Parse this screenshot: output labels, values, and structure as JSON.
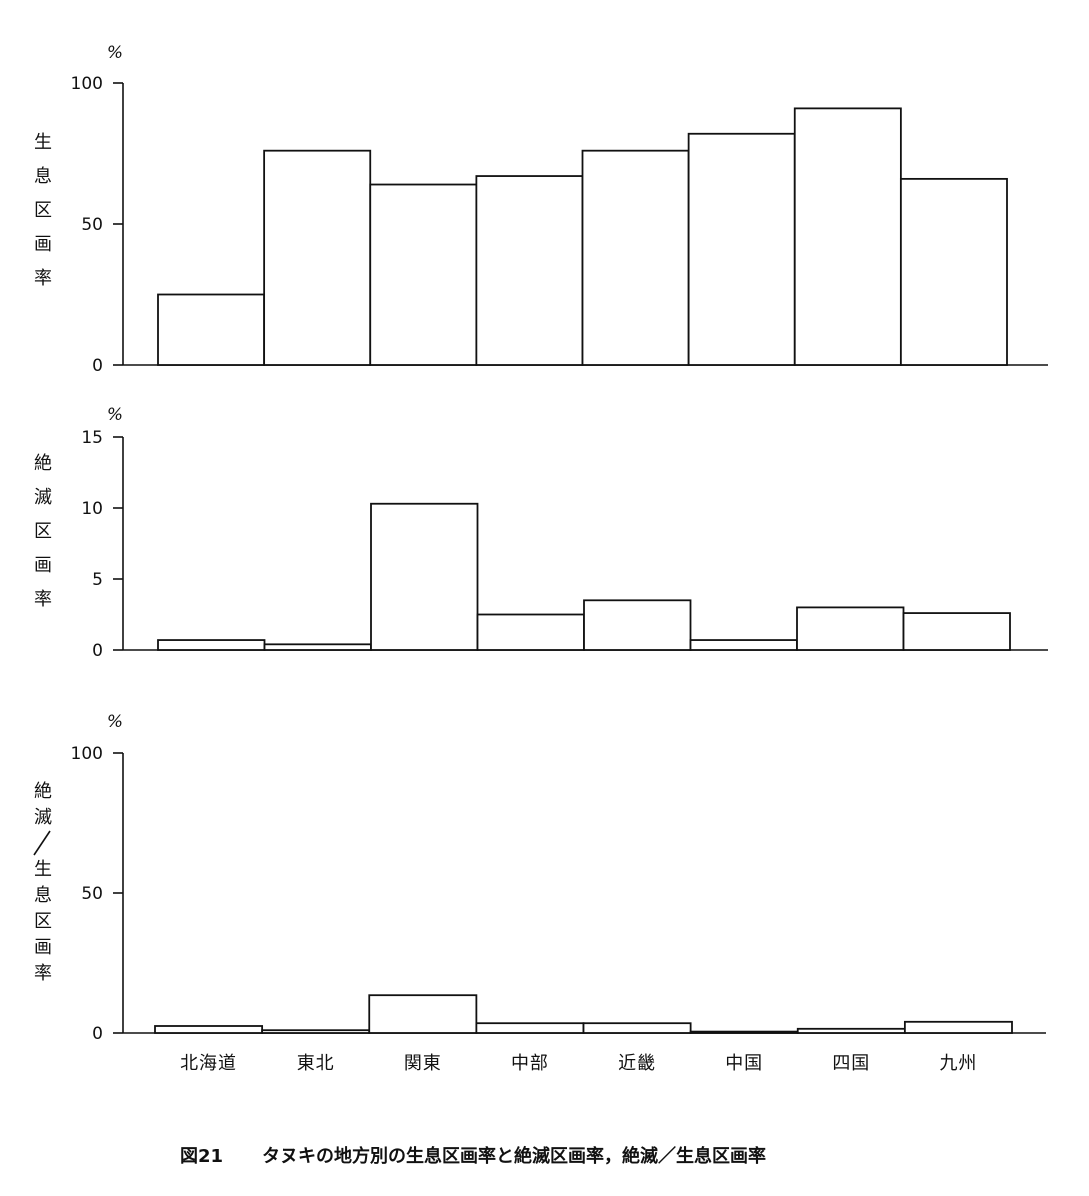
{
  "caption": {
    "label": "図21",
    "text": "タヌキの地方別の生息区画率と絶滅区画率，絶滅／生息区画率"
  },
  "chart_data": [
    {
      "type": "bar",
      "unit": "%",
      "ylabel": "生息区画率",
      "categories": [
        "北海道",
        "東北",
        "関東",
        "中部",
        "近畿",
        "中国",
        "四国",
        "九州"
      ],
      "values": [
        25,
        76,
        64,
        67,
        76,
        82,
        91,
        66
      ],
      "ylim": [
        0,
        100
      ],
      "yticks": [
        "100",
        "50",
        "0"
      ]
    },
    {
      "type": "bar",
      "unit": "%",
      "ylabel": "絶滅区画率",
      "categories": [
        "北海道",
        "東北",
        "関東",
        "中部",
        "近畿",
        "中国",
        "四国",
        "九州"
      ],
      "values": [
        0.7,
        0.4,
        10.3,
        2.5,
        3.5,
        0.7,
        3.0,
        2.6
      ],
      "ylim": [
        0,
        15
      ],
      "yticks": [
        "15",
        "10",
        "5",
        "0"
      ]
    },
    {
      "type": "bar",
      "unit": "%",
      "ylabel": "絶滅／生息区画率",
      "categories": [
        "北海道",
        "東北",
        "関東",
        "中部",
        "近畿",
        "中国",
        "四国",
        "九州"
      ],
      "values": [
        2.5,
        1.0,
        13.5,
        3.5,
        3.5,
        0.5,
        1.5,
        4.0
      ],
      "ylim": [
        0,
        100
      ],
      "yticks": [
        "100",
        "50",
        "0"
      ]
    }
  ]
}
